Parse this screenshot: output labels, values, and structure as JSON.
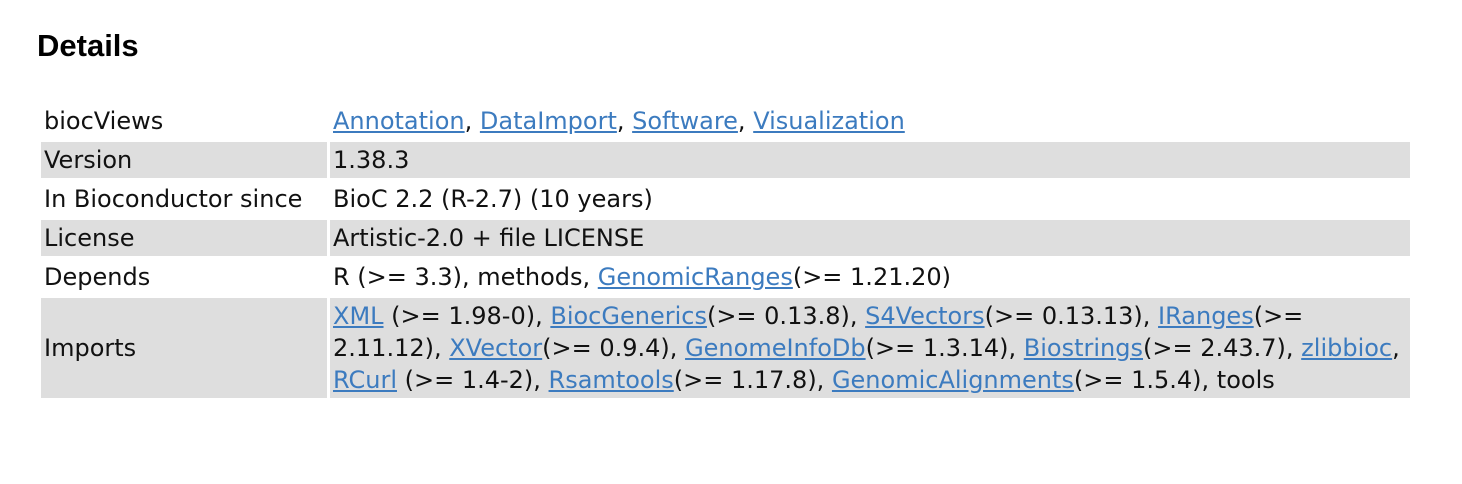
{
  "heading": "Details",
  "rows": {
    "biocviews": {
      "label": "biocViews",
      "links": [
        "Annotation",
        "DataImport",
        "Software",
        "Visualization"
      ],
      "sep": ", "
    },
    "version": {
      "label": "Version",
      "value": "1.38.3"
    },
    "since": {
      "label": "In Bioconductor since",
      "value": "BioC 2.2 (R-2.7) (10 years)"
    },
    "license": {
      "label": "License",
      "value": "Artistic-2.0 + file LICENSE"
    },
    "depends": {
      "label": "Depends",
      "prefix": "R (>= 3.3), methods, ",
      "link": "GenomicRanges",
      "suffix": "(>= 1.21.20)"
    },
    "imports": {
      "label": "Imports",
      "items": [
        {
          "link": "XML",
          "after": " (>= 1.98-0), "
        },
        {
          "link": "BiocGenerics",
          "after": "(>= 0.13.8), "
        },
        {
          "link": "S4Vectors",
          "after": "(>= 0.13.13), "
        },
        {
          "link": "IRanges",
          "after": "(>= 2.11.12), "
        },
        {
          "link": "XVector",
          "after": "(>= 0.9.4), "
        },
        {
          "link": "GenomeInfoDb",
          "after": "(>= 1.3.14), "
        },
        {
          "link": "Biostrings",
          "after": "(>= 2.43.7), "
        },
        {
          "link": "zlibbioc",
          "after": ", "
        },
        {
          "link": "RCurl",
          "after": " (>= 1.4-2), "
        },
        {
          "link": "Rsamtools",
          "after": "(>= 1.17.8), "
        },
        {
          "link": "GenomicAlignments",
          "after": "(>= 1.5.4), tools"
        }
      ]
    }
  },
  "colors": {
    "link": "#3c7bbf",
    "row_shade": "#dedede"
  }
}
